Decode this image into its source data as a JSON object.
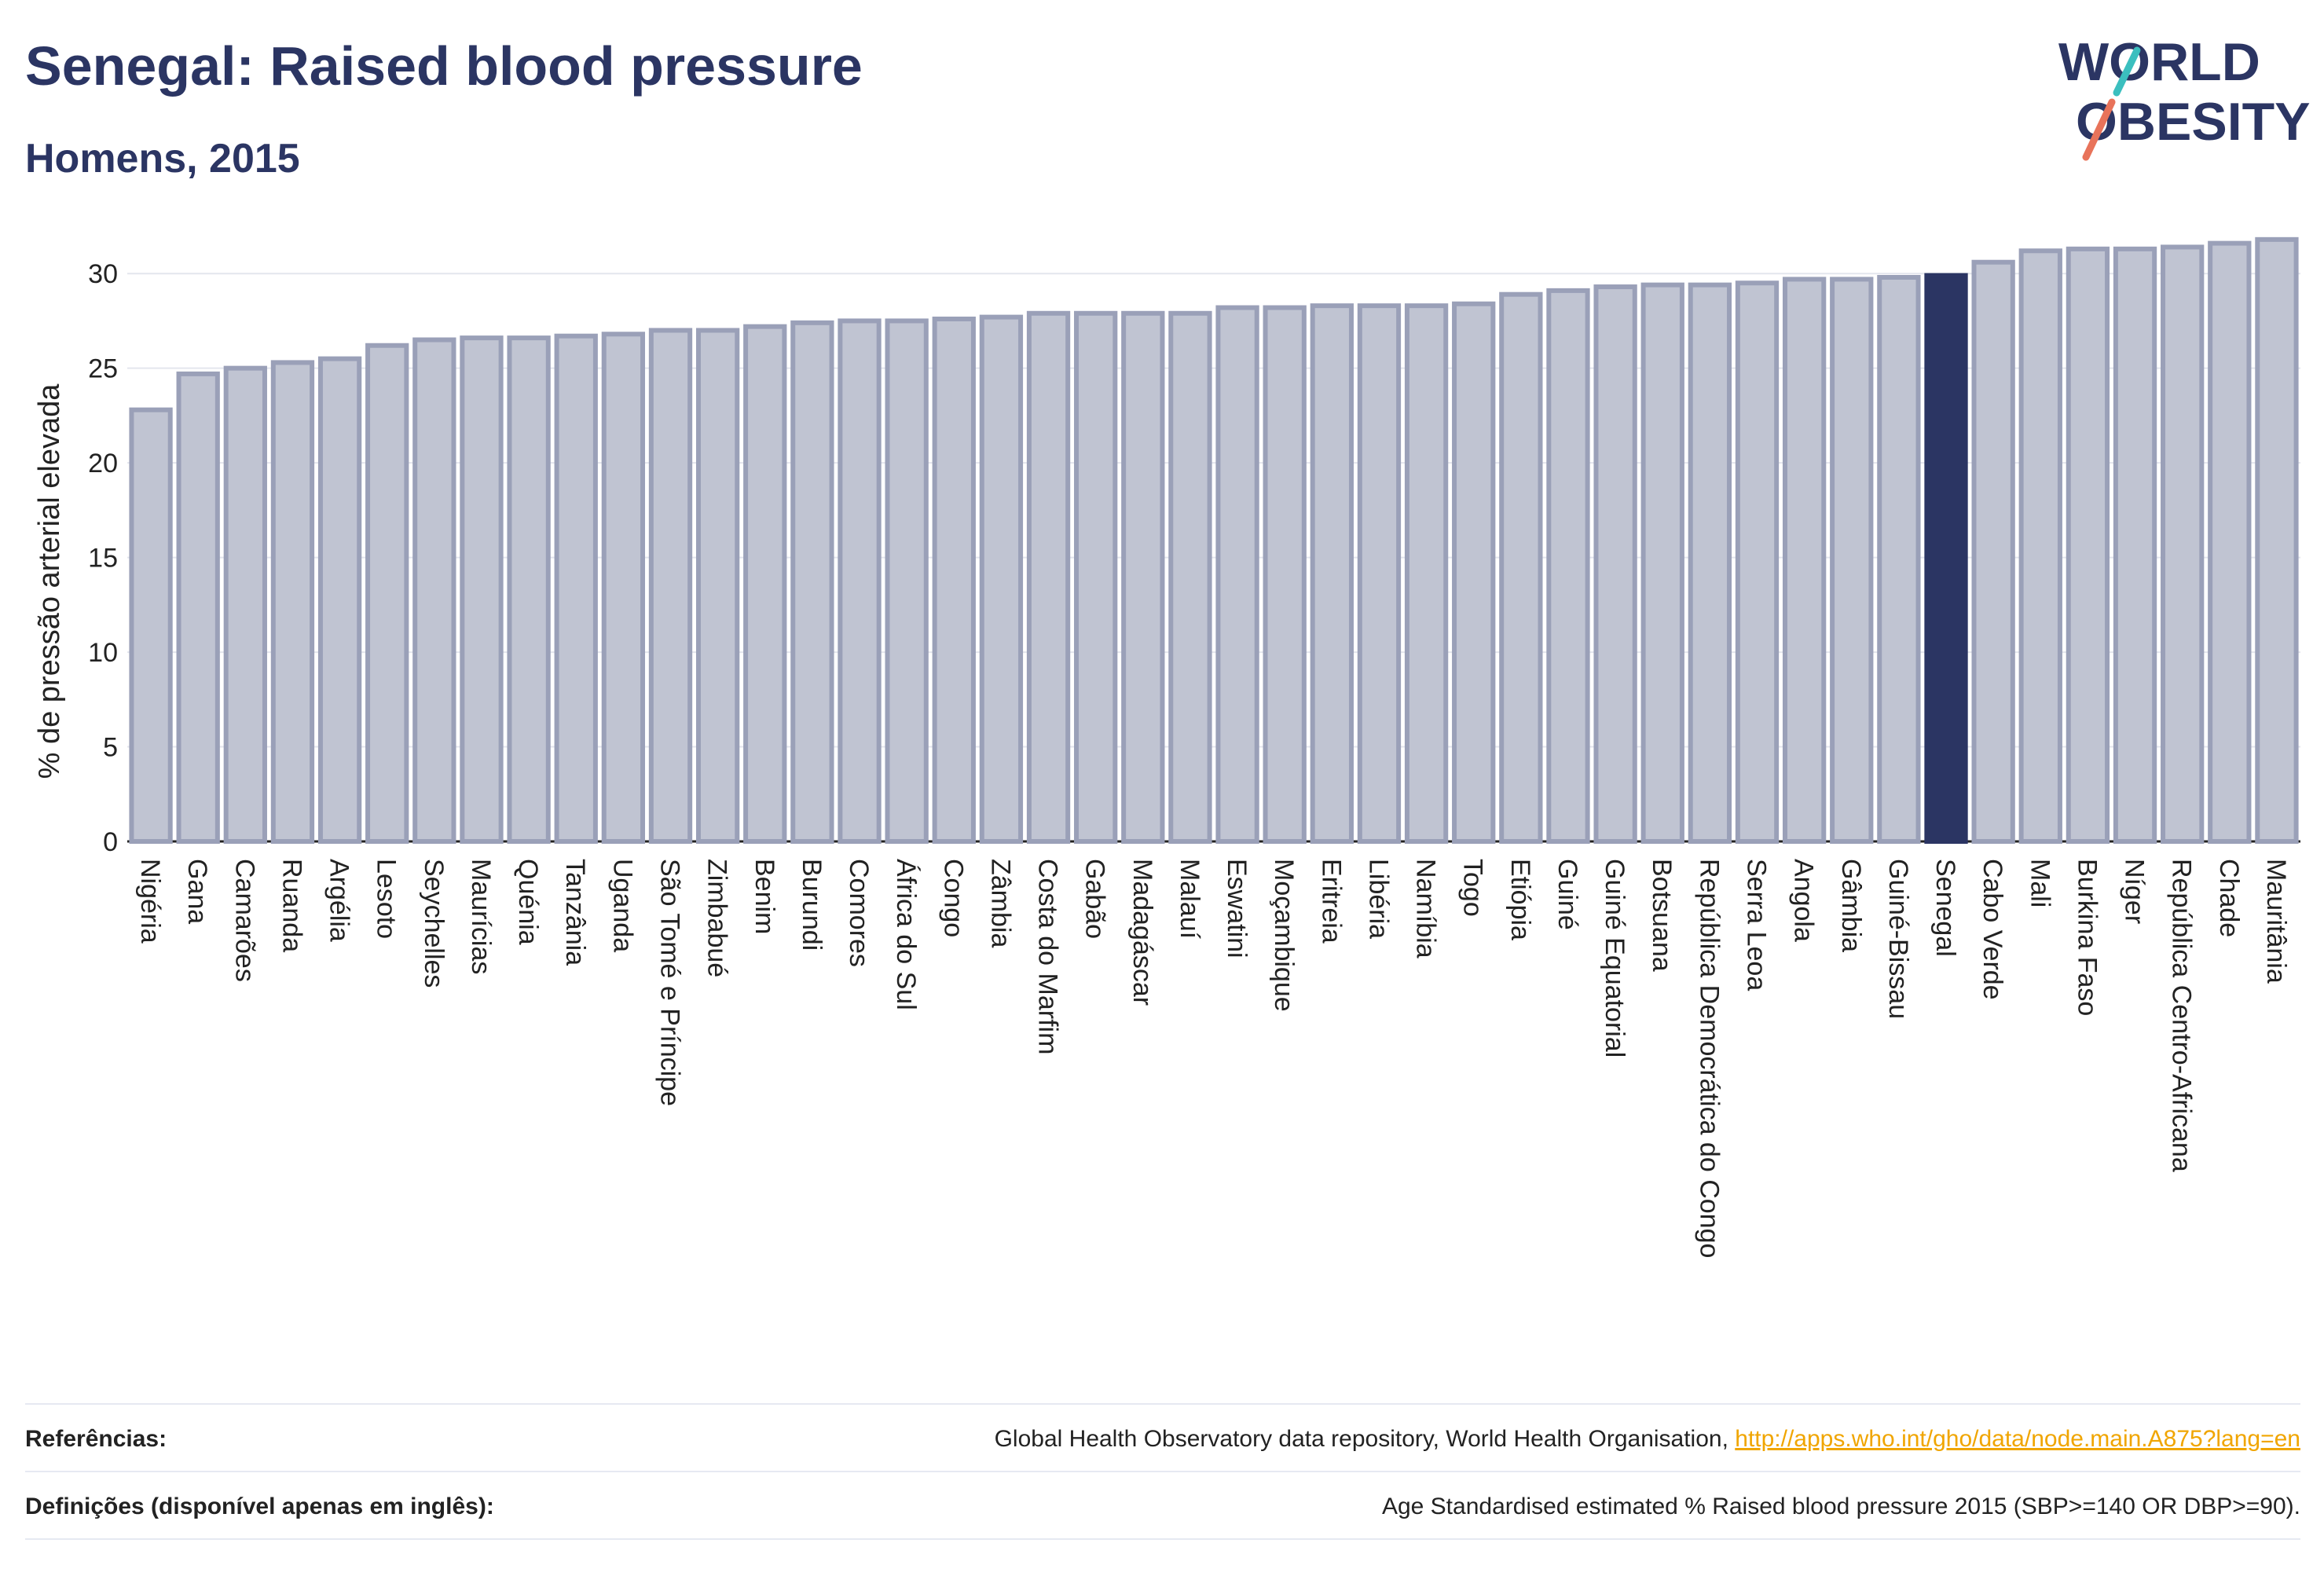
{
  "header": {
    "title": "Senegal: Raised blood pressure",
    "subtitle": "Homens, 2015"
  },
  "logo": {
    "line1": "WORLD",
    "line2": "OBESITY"
  },
  "chart_data": {
    "type": "bar",
    "ylabel": "% de pressão arterial elevada",
    "ylim": [
      0,
      32
    ],
    "yticks": [
      0,
      5,
      10,
      15,
      20,
      25,
      30
    ],
    "grid": true,
    "highlight": "Senegal",
    "colors": {
      "bar": "#c0c4d2",
      "bar_border": "#9aa0b8",
      "highlight": "#2b3563"
    },
    "categories": [
      "Nigéria",
      "Gana",
      "Camarões",
      "Ruanda",
      "Argélia",
      "Lesoto",
      "Seychelles",
      "Maurícias",
      "Quénia",
      "Tanzânia",
      "Uganda",
      "São Tomé e Príncipe",
      "Zimbabué",
      "Benim",
      "Burundi",
      "Comores",
      "África do Sul",
      "Congo",
      "Zâmbia",
      "Costa do Marfim",
      "Gabão",
      "Madagáscar",
      "Malauí",
      "Eswatini",
      "Moçambique",
      "Eritreia",
      "Libéria",
      "Namíbia",
      "Togo",
      "Etiópia",
      "Guiné",
      "Guiné Equatorial",
      "Botsuana",
      "República Democrática do Congo",
      "Serra Leoa",
      "Angola",
      "Gâmbia",
      "Guiné-Bissau",
      "Senegal",
      "Cabo Verde",
      "Mali",
      "Burkina Faso",
      "Níger",
      "República Centro-Africana",
      "Chade",
      "Mauritânia"
    ],
    "values": [
      22.8,
      24.7,
      25.0,
      25.3,
      25.5,
      26.2,
      26.5,
      26.6,
      26.6,
      26.7,
      26.8,
      27.0,
      27.0,
      27.2,
      27.4,
      27.5,
      27.5,
      27.6,
      27.7,
      27.9,
      27.9,
      27.9,
      27.9,
      28.2,
      28.2,
      28.3,
      28.3,
      28.3,
      28.4,
      28.9,
      29.1,
      29.3,
      29.4,
      29.4,
      29.5,
      29.7,
      29.7,
      29.8,
      29.9,
      30.6,
      31.2,
      31.3,
      31.3,
      31.4,
      31.6,
      31.8
    ]
  },
  "footer": {
    "references_label": "Referências:",
    "references_text": "Global Health Observatory data repository, World Health Organisation, ",
    "references_link": "http://apps.who.int/gho/data/node.main.A875?lang=en",
    "definitions_label": "Definições (disponível apenas em inglês):",
    "definitions_text": "Age Standardised estimated % Raised blood pressure 2015 (SBP>=140 OR DBP>=90)."
  }
}
